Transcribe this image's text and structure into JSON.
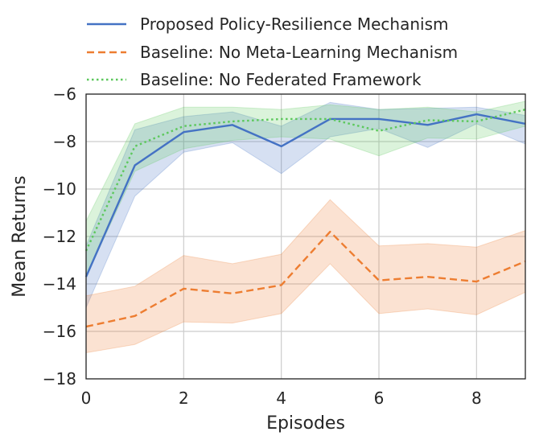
{
  "chart_data": {
    "type": "line",
    "xlabel": "Episodes",
    "ylabel": "Mean Returns",
    "xlim": [
      0,
      9
    ],
    "ylim": [
      -18,
      -6
    ],
    "xticks": [
      0,
      2,
      4,
      6,
      8
    ],
    "yticks": [
      -6,
      -8,
      -10,
      -12,
      -14,
      -16,
      -18
    ],
    "ytick_labels": [
      "−6",
      "−8",
      "−10",
      "−12",
      "−14",
      "−16",
      "−18"
    ],
    "grid": true,
    "legend_position": "top",
    "x": [
      0,
      1,
      2,
      3,
      4,
      5,
      6,
      7,
      8,
      9
    ],
    "series": [
      {
        "name": "Proposed Policy-Resilience Mechanism",
        "color": "#4472c4",
        "dash": "solid",
        "values": [
          -13.7,
          -9.0,
          -7.6,
          -7.3,
          -8.2,
          -7.05,
          -7.05,
          -7.3,
          -6.85,
          -7.25
        ],
        "lower": [
          -15.0,
          -10.3,
          -8.45,
          -8.05,
          -9.35,
          -7.8,
          -7.45,
          -8.25,
          -7.25,
          -8.1
        ],
        "upper": [
          -12.4,
          -7.5,
          -6.95,
          -6.75,
          -7.35,
          -6.35,
          -6.65,
          -6.6,
          -6.55,
          -6.9
        ]
      },
      {
        "name": "Baseline: No Meta-Learning Mechanism",
        "color": "#ed7d31",
        "dash": "dashed",
        "values": [
          -15.8,
          -15.35,
          -14.2,
          -14.4,
          -14.05,
          -11.8,
          -13.85,
          -13.7,
          -13.9,
          -13.05
        ],
        "lower": [
          -16.9,
          -16.55,
          -15.6,
          -15.65,
          -15.25,
          -13.15,
          -15.25,
          -15.05,
          -15.3,
          -14.35
        ],
        "upper": [
          -14.5,
          -14.1,
          -12.8,
          -13.15,
          -12.75,
          -10.45,
          -12.4,
          -12.3,
          -12.45,
          -11.75
        ]
      },
      {
        "name": "Baseline: No Federated Framework",
        "color": "#5cc85c",
        "dash": "dotted",
        "values": [
          -12.6,
          -8.2,
          -7.35,
          -7.15,
          -7.05,
          -7.05,
          -7.55,
          -7.1,
          -7.15,
          -6.65
        ],
        "lower": [
          -13.7,
          -9.25,
          -8.3,
          -7.95,
          -7.8,
          -7.9,
          -8.6,
          -7.85,
          -7.9,
          -7.35
        ],
        "upper": [
          -11.35,
          -7.25,
          -6.55,
          -6.55,
          -6.65,
          -6.45,
          -6.65,
          -6.55,
          -6.75,
          -6.3
        ]
      }
    ]
  }
}
